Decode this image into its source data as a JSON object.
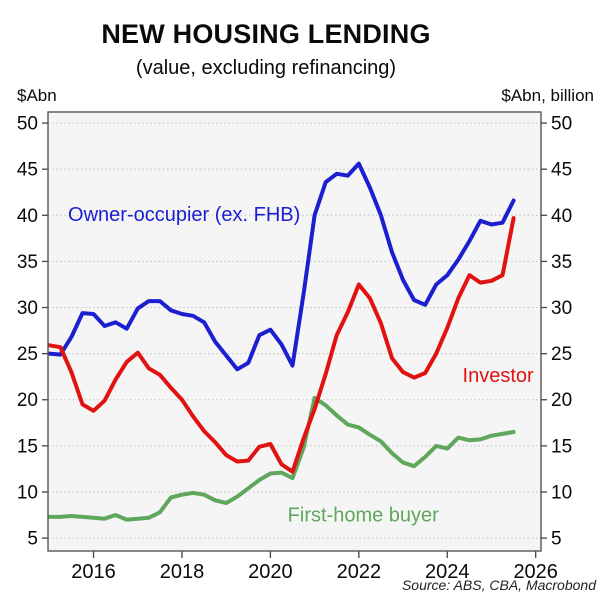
{
  "title": "NEW HOUSING LENDING",
  "subtitle": "(value, excluding refinancing)",
  "left_unit": "$Abn",
  "right_unit": "$Abn, billion",
  "source": "Source: ABS, CBA, Macrobond",
  "chart_data": {
    "type": "line",
    "title": "NEW HOUSING LENDING",
    "subtitle": "(value, excluding refinancing)",
    "ylabel_left": "$Abn",
    "ylabel_right": "$Abn, billion",
    "grid": "horizontal-dotted",
    "legend": "inline-colored-labels",
    "frame_color": "#555555",
    "grid_color": "#c2c2c2",
    "plot_bg": "#f5f5f5",
    "axes": {
      "x": {
        "min": 2014.97,
        "max": 2026.12,
        "ticks": [
          2016,
          2018,
          2020,
          2022,
          2024,
          2026
        ]
      },
      "y": {
        "min": 3.6,
        "max": 51.2,
        "ticks": [
          5,
          10,
          15,
          20,
          25,
          30,
          35,
          40,
          45,
          50
        ]
      }
    },
    "x": [
      2015.0,
      2015.25,
      2015.5,
      2015.75,
      2016.0,
      2016.25,
      2016.5,
      2016.75,
      2017.0,
      2017.25,
      2017.5,
      2017.75,
      2018.0,
      2018.25,
      2018.5,
      2018.75,
      2019.0,
      2019.25,
      2019.5,
      2019.75,
      2020.0,
      2020.25,
      2020.5,
      2020.75,
      2021.0,
      2021.25,
      2021.5,
      2021.75,
      2022.0,
      2022.25,
      2022.5,
      2022.75,
      2023.0,
      2023.25,
      2023.5,
      2023.75,
      2024.0,
      2024.25,
      2024.5,
      2024.75,
      2025.0,
      2025.25,
      2025.5
    ],
    "series": [
      {
        "id": "first-home-buyer",
        "name": "First-home buyer",
        "color": "#5ea75c",
        "values": [
          7.3,
          7.3,
          7.4,
          7.3,
          7.2,
          7.1,
          7.5,
          7.0,
          7.1,
          7.2,
          7.8,
          9.4,
          9.7,
          9.9,
          9.7,
          9.1,
          8.8,
          9.5,
          10.4,
          11.3,
          12.0,
          12.1,
          11.5,
          14.8,
          20.2,
          19.4,
          18.3,
          17.3,
          17.0,
          16.2,
          15.5,
          14.2,
          13.2,
          12.8,
          13.8,
          15.0,
          14.7,
          15.9,
          15.6,
          15.7,
          16.1,
          16.3,
          16.5
        ],
        "label": {
          "text": "First-home buyer",
          "x": 2022.1,
          "y": 6.8
        }
      },
      {
        "id": "owner-occupier",
        "name": "Owner-occupier (ex. FHB)",
        "color": "#1b1fd0",
        "values": [
          25.0,
          24.9,
          26.8,
          29.4,
          29.3,
          28.0,
          28.4,
          27.7,
          29.9,
          30.7,
          30.7,
          29.7,
          29.3,
          29.1,
          28.4,
          26.3,
          24.8,
          23.3,
          24.0,
          27.0,
          27.6,
          26.0,
          23.7,
          31.5,
          40.0,
          43.6,
          44.5,
          44.3,
          45.6,
          43.0,
          40.0,
          36.0,
          33.0,
          30.8,
          30.3,
          32.5,
          33.5,
          35.2,
          37.2,
          39.4,
          39.0,
          39.2,
          41.6
        ],
        "label": {
          "text": "Owner-occupier (ex. FHB)",
          "x": 2018.05,
          "y": 39.4
        }
      },
      {
        "id": "investor",
        "name": "Investor",
        "color": "#e01212",
        "values": [
          25.9,
          25.7,
          23.0,
          19.5,
          18.8,
          19.9,
          22.2,
          24.1,
          25.1,
          23.4,
          22.7,
          21.3,
          20.0,
          18.2,
          16.6,
          15.4,
          14.0,
          13.3,
          13.4,
          14.9,
          15.2,
          13.0,
          12.2,
          15.8,
          19.0,
          22.8,
          27.0,
          29.5,
          32.5,
          31.0,
          28.3,
          24.5,
          23.0,
          22.4,
          22.9,
          25.0,
          27.8,
          31.0,
          33.5,
          32.7,
          32.9,
          33.5,
          39.7
        ],
        "label": {
          "text": "Investor",
          "x": 2025.15,
          "y": 21.9
        }
      }
    ]
  }
}
